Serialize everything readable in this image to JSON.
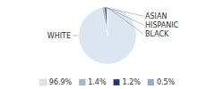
{
  "chart_data": {
    "type": "pie",
    "categories": [
      "WHITE",
      "ASIAN",
      "HISPANIC",
      "BLACK"
    ],
    "values": [
      96.9,
      1.4,
      1.2,
      0.5
    ],
    "value_labels": [
      "96.9%",
      "1.4%",
      "1.2%",
      "0.5%"
    ],
    "colors": [
      "#dce6f0",
      "#9db8d2",
      "#1f3864",
      "#8eaacc"
    ],
    "legend": "bottom"
  }
}
